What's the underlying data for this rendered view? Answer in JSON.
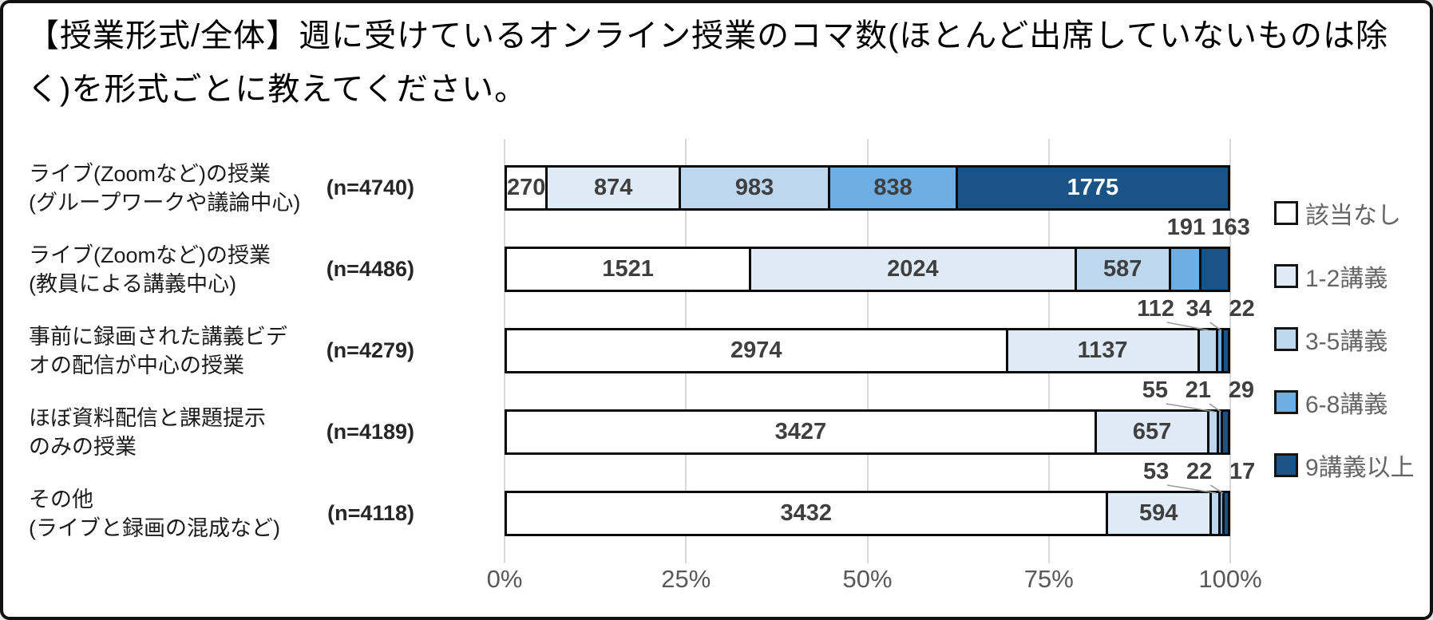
{
  "title": "【授業形式/全体】週に受けているオンライン授業のコマ数(ほとんど出席していないものは除く)を形式ごとに教えてください。",
  "colors": {
    "grid": "#d9d9d9",
    "bar_border": "#0a0a0a",
    "value_label": "#3f3f3f",
    "value_label_on_dark": "#ffffff",
    "axis_label": "#595959",
    "legend_label": "#646464",
    "leader_line": "#9a9a9a"
  },
  "chart_data": {
    "type": "bar",
    "orientation": "horizontal",
    "stacked": true,
    "x_axis": {
      "tick_labels": [
        "0%",
        "25%",
        "50%",
        "75%",
        "100%"
      ],
      "range_percent": [
        0,
        100
      ],
      "grid": true
    },
    "legend_position": "right",
    "legend": [
      {
        "label": "該当なし",
        "color": "#ffffff"
      },
      {
        "label": "1-2講義",
        "color": "#deebf7"
      },
      {
        "label": "3-5講義",
        "color": "#bdd7ee"
      },
      {
        "label": "6-8講義",
        "color": "#6faee3"
      },
      {
        "label": "9講義以上",
        "color": "#1a5486"
      }
    ],
    "rows": [
      {
        "label_lines": [
          "ライブ(Zoomなど)の授業",
          "(グループワークや議論中心)"
        ],
        "n_label": "(n=4740)",
        "n": 4740,
        "values": [
          270,
          874,
          983,
          838,
          1775
        ]
      },
      {
        "label_lines": [
          "ライブ(Zoomなど)の授業",
          "(教員による講義中心)"
        ],
        "n_label": "(n=4486)",
        "n": 4486,
        "values": [
          1521,
          2024,
          587,
          191,
          163
        ]
      },
      {
        "label_lines": [
          "事前に録画された講義ビデ",
          "オの配信が中心の授業"
        ],
        "n_label": "(n=4279)",
        "n": 4279,
        "values": [
          2974,
          1137,
          112,
          34,
          22
        ]
      },
      {
        "label_lines": [
          "ほぼ資料配信と課題提示",
          "のみの授業"
        ],
        "n_label": "(n=4189)",
        "n": 4189,
        "values": [
          3427,
          657,
          55,
          21,
          29
        ]
      },
      {
        "label_lines": [
          "その他",
          "(ライブと録画の混成など)"
        ],
        "n_label": "(n=4118)",
        "n": 4118,
        "values": [
          3432,
          594,
          53,
          22,
          17
        ]
      }
    ]
  }
}
